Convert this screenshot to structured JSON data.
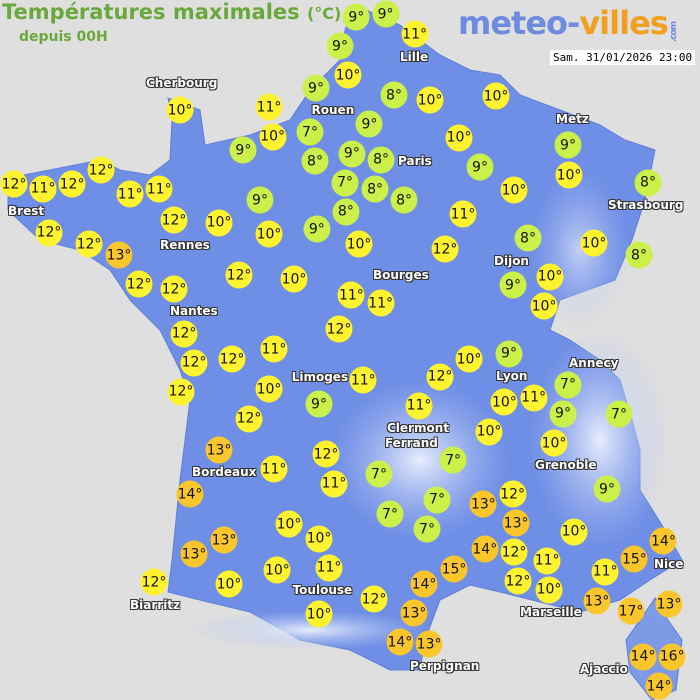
{
  "header": {
    "title": "Températures maximales",
    "unit": "(°C)",
    "subtitle": "depuis 00H",
    "logo": "meteo-villes.com",
    "datetime": "Sam. 31/01/2026 23:00"
  },
  "colors": {
    "cold": "#ccf04a",
    "mild": "#fff22e",
    "warm": "#fbc52c",
    "land": "#6f8ee6",
    "sea": "#e0dfdf",
    "title": "#6aa83c"
  },
  "cities": [
    "Cherbourg",
    "Lille",
    "Rouen",
    "Paris",
    "Metz",
    "Strasbourg",
    "Brest",
    "Rennes",
    "Nantes",
    "Dijon",
    "Bourges",
    "Annecy",
    "Lyon",
    "Limoges",
    "Clermont",
    "Ferrand",
    "Grenoble",
    "Bordeaux",
    "Nice",
    "Toulouse",
    "Marseille",
    "Biarritz",
    "Perpignan",
    "Ajaccio"
  ],
  "temperatures": [
    9,
    9,
    9,
    11,
    10,
    9,
    11,
    10,
    7,
    8,
    9,
    10,
    8,
    10,
    10,
    9,
    9,
    8,
    8,
    7,
    8,
    8,
    10,
    9,
    9,
    10,
    10,
    8,
    12,
    11,
    12,
    12,
    11,
    11,
    9,
    9,
    11,
    8,
    10,
    8,
    12,
    12,
    13,
    12,
    10,
    10,
    10,
    12,
    9,
    10,
    10,
    12,
    12,
    12,
    10,
    11,
    11,
    12,
    12,
    12,
    12,
    12,
    11,
    10,
    9,
    11,
    10,
    7,
    9,
    7,
    12,
    11,
    10,
    9,
    12,
    11,
    10,
    10,
    13,
    11,
    12,
    11,
    7,
    7,
    14,
    7,
    7,
    7,
    13,
    12,
    13,
    9,
    10,
    10,
    13,
    13,
    10,
    14,
    12,
    15,
    11,
    12,
    10,
    11,
    14,
    15,
    13,
    17,
    13,
    12,
    10,
    10,
    11,
    14,
    12,
    10,
    13,
    14,
    13,
    14,
    16,
    14
  ]
}
